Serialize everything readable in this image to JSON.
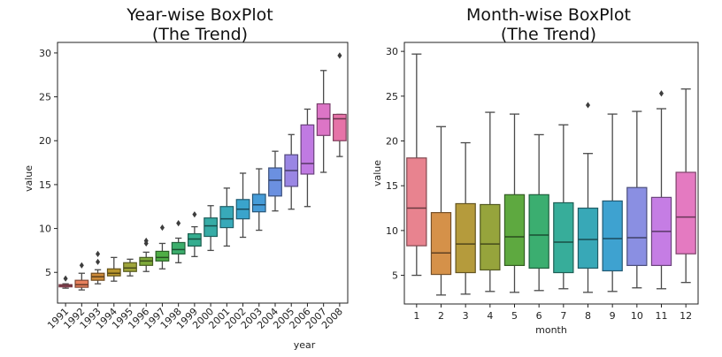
{
  "chart_data": [
    {
      "type": "box",
      "title": "Year-wise BoxPlot\n(The Trend)",
      "title_lines": [
        "Year-wise BoxPlot",
        "(The Trend)"
      ],
      "xlabel": "year",
      "ylabel": "value",
      "ylim": [
        1.5,
        31.2
      ],
      "yticks": [
        5,
        10,
        15,
        20,
        25,
        30
      ],
      "categories": [
        "1991",
        "1992",
        "1993",
        "1994",
        "1995",
        "1996",
        "1997",
        "1998",
        "1999",
        "2000",
        "2001",
        "2002",
        "2003",
        "2004",
        "2005",
        "2006",
        "2007",
        "2008"
      ],
      "x_tick_rotation": "45",
      "grid": false,
      "boxes": [
        {
          "whislo": 3.2,
          "q1": 3.35,
          "med": 3.5,
          "q3": 3.6,
          "whishi": 3.7,
          "fliers": [
            4.3
          ],
          "color": "#e8738a"
        },
        {
          "whislo": 3.0,
          "q1": 3.3,
          "med": 3.6,
          "q3": 4.1,
          "whishi": 4.9,
          "fliers": [
            5.8
          ],
          "color": "#e8805c"
        },
        {
          "whislo": 3.7,
          "q1": 4.1,
          "med": 4.5,
          "q3": 4.9,
          "whishi": 5.3,
          "fliers": [
            6.2,
            7.1
          ],
          "color": "#cc8a3a"
        },
        {
          "whislo": 4.0,
          "q1": 4.6,
          "med": 4.9,
          "q3": 5.4,
          "whishi": 6.7,
          "fliers": [],
          "color": "#b8962e"
        },
        {
          "whislo": 4.6,
          "q1": 5.1,
          "med": 5.5,
          "q3": 6.1,
          "whishi": 6.5,
          "fliers": [],
          "color": "#9ea43a"
        },
        {
          "whislo": 5.1,
          "q1": 5.8,
          "med": 6.3,
          "q3": 6.7,
          "whishi": 7.3,
          "fliers": [
            8.3,
            8.6
          ],
          "color": "#7ea93a"
        },
        {
          "whislo": 5.4,
          "q1": 6.3,
          "med": 6.7,
          "q3": 7.4,
          "whishi": 8.3,
          "fliers": [
            10.1
          ],
          "color": "#4fae46"
        },
        {
          "whislo": 6.1,
          "q1": 7.1,
          "med": 7.6,
          "q3": 8.4,
          "whishi": 8.9,
          "fliers": [
            10.6
          ],
          "color": "#3cae6c"
        },
        {
          "whislo": 6.8,
          "q1": 8.0,
          "med": 8.8,
          "q3": 9.4,
          "whishi": 10.2,
          "fliers": [
            11.6
          ],
          "color": "#35ad8f"
        },
        {
          "whislo": 7.5,
          "q1": 9.1,
          "med": 10.3,
          "q3": 11.2,
          "whishi": 12.6,
          "fliers": [],
          "color": "#36aca6"
        },
        {
          "whislo": 8.0,
          "q1": 10.1,
          "med": 11.1,
          "q3": 12.5,
          "whishi": 14.6,
          "fliers": [],
          "color": "#38a9b9"
        },
        {
          "whislo": 9.0,
          "q1": 11.1,
          "med": 12.2,
          "q3": 13.3,
          "whishi": 16.3,
          "fliers": [],
          "color": "#3aa4cc"
        },
        {
          "whislo": 9.8,
          "q1": 11.9,
          "med": 12.7,
          "q3": 13.9,
          "whishi": 16.8,
          "fliers": [],
          "color": "#469cd8"
        },
        {
          "whislo": 12.0,
          "q1": 13.7,
          "med": 15.5,
          "q3": 16.9,
          "whishi": 18.8,
          "fliers": [],
          "color": "#6b90e0"
        },
        {
          "whislo": 12.2,
          "q1": 14.8,
          "med": 16.6,
          "q3": 18.4,
          "whishi": 20.7,
          "fliers": [],
          "color": "#9a86e4"
        },
        {
          "whislo": 12.5,
          "q1": 16.2,
          "med": 17.4,
          "q3": 21.8,
          "whishi": 23.6,
          "fliers": [],
          "color": "#c07ae2"
        },
        {
          "whislo": 16.4,
          "q1": 20.6,
          "med": 22.5,
          "q3": 24.2,
          "whishi": 28.0,
          "fliers": [],
          "color": "#dc75c6"
        },
        {
          "whislo": 18.2,
          "q1": 20.0,
          "med": 22.5,
          "q3": 23.0,
          "whishi": 23.0,
          "fliers": [
            29.7
          ],
          "color": "#e673a8"
        }
      ]
    },
    {
      "type": "box",
      "title": "Month-wise BoxPlot\n(The Trend)",
      "title_lines": [
        "Month-wise BoxPlot",
        "(The Trend)"
      ],
      "xlabel": "month",
      "ylabel": "value",
      "ylim": [
        1.8,
        31.0
      ],
      "yticks": [
        5,
        10,
        15,
        20,
        25,
        30
      ],
      "categories": [
        "1",
        "2",
        "3",
        "4",
        "5",
        "6",
        "7",
        "8",
        "9",
        "10",
        "11",
        "12"
      ],
      "x_tick_rotation": "0",
      "grid": false,
      "boxes": [
        {
          "whislo": 5.0,
          "q1": 8.3,
          "med": 12.5,
          "q3": 18.1,
          "whishi": 29.7,
          "fliers": [],
          "color": "#e8838f"
        },
        {
          "whislo": 2.8,
          "q1": 5.1,
          "med": 7.5,
          "q3": 12.0,
          "whishi": 21.6,
          "fliers": [],
          "color": "#d59149"
        },
        {
          "whislo": 2.9,
          "q1": 5.3,
          "med": 8.5,
          "q3": 13.0,
          "whishi": 19.8,
          "fliers": [],
          "color": "#b59b3c"
        },
        {
          "whislo": 3.2,
          "q1": 5.6,
          "med": 8.5,
          "q3": 12.9,
          "whishi": 23.2,
          "fliers": [],
          "color": "#96a43c"
        },
        {
          "whislo": 3.1,
          "q1": 6.1,
          "med": 9.3,
          "q3": 14.0,
          "whishi": 23.0,
          "fliers": [],
          "color": "#5ea940"
        },
        {
          "whislo": 3.3,
          "q1": 5.8,
          "med": 9.5,
          "q3": 14.0,
          "whishi": 20.7,
          "fliers": [],
          "color": "#3bae70"
        },
        {
          "whislo": 3.5,
          "q1": 5.3,
          "med": 8.7,
          "q3": 13.1,
          "whishi": 21.8,
          "fliers": [],
          "color": "#37ad9a"
        },
        {
          "whislo": 3.1,
          "q1": 5.8,
          "med": 9.0,
          "q3": 12.5,
          "whishi": 18.6,
          "fliers": [
            24.0
          ],
          "color": "#38a8b7"
        },
        {
          "whislo": 3.2,
          "q1": 5.5,
          "med": 9.1,
          "q3": 13.3,
          "whishi": 23.0,
          "fliers": [],
          "color": "#3ea2d0"
        },
        {
          "whislo": 3.6,
          "q1": 6.1,
          "med": 9.2,
          "q3": 14.8,
          "whishi": 23.3,
          "fliers": [],
          "color": "#8a8fe2"
        },
        {
          "whislo": 3.5,
          "q1": 6.1,
          "med": 9.9,
          "q3": 13.7,
          "whishi": 23.6,
          "fliers": [
            25.3
          ],
          "color": "#c57de4"
        },
        {
          "whislo": 4.2,
          "q1": 7.4,
          "med": 11.5,
          "q3": 16.5,
          "whishi": 25.8,
          "fliers": [],
          "color": "#e47ac1"
        }
      ]
    }
  ]
}
